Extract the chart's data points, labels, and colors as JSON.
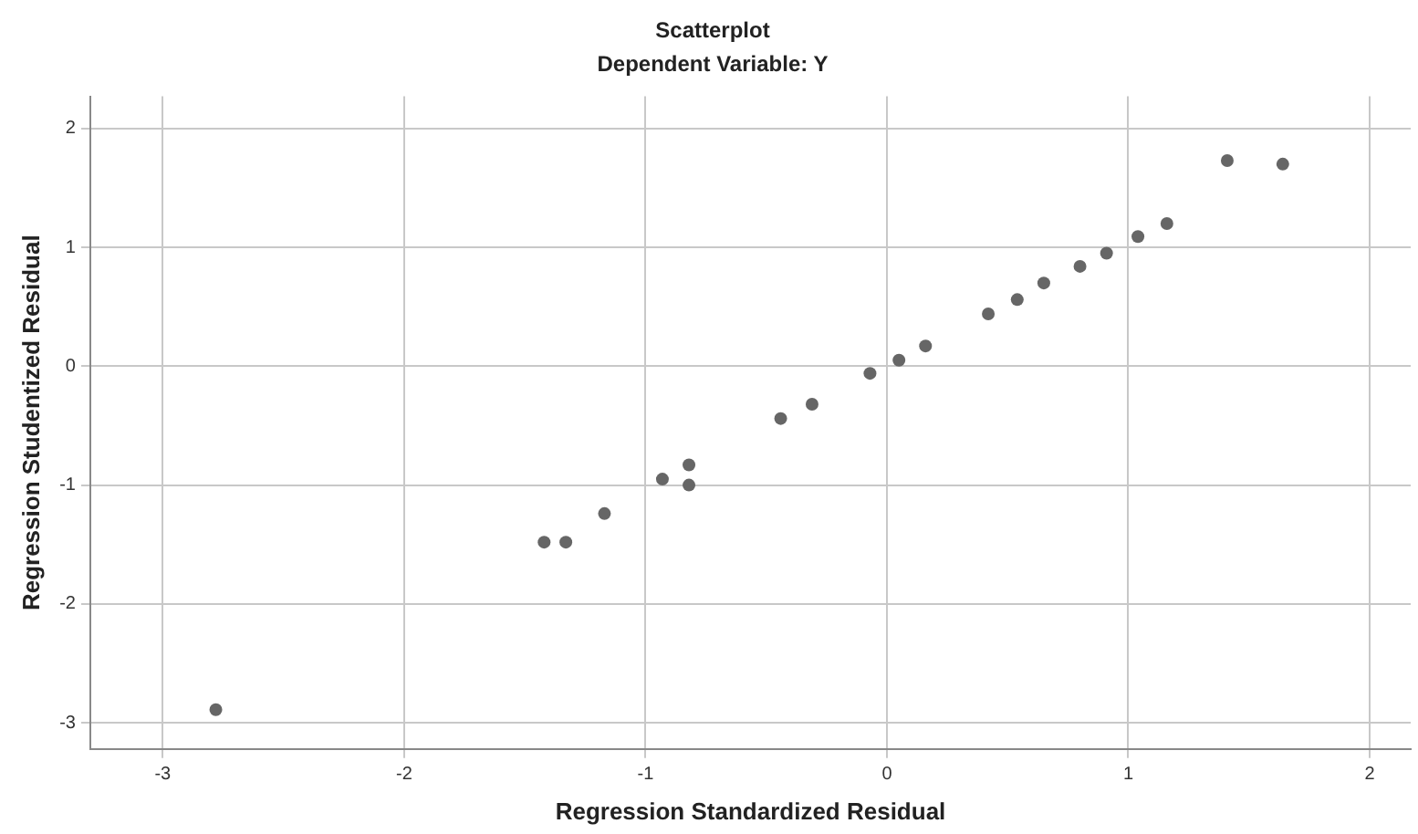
{
  "chart_data": {
    "type": "scatter",
    "title": "Scatterplot",
    "subtitle": "Dependent Variable: Y",
    "xlabel": "Regression Standardized Residual",
    "ylabel": "Regression Studentized Residual",
    "x": [
      -2.78,
      -1.42,
      -1.33,
      -1.17,
      -0.93,
      -0.82,
      -0.82,
      -0.44,
      -0.31,
      -0.07,
      0.05,
      0.16,
      0.42,
      0.54,
      0.65,
      0.8,
      0.91,
      1.04,
      1.16,
      1.41,
      1.64
    ],
    "series": [
      {
        "color": "#666666",
        "values": [
          -2.89,
          -1.48,
          -1.48,
          -1.24,
          -0.95,
          -0.83,
          -1.0,
          -0.44,
          -0.32,
          -0.06,
          0.05,
          0.17,
          0.44,
          0.56,
          0.7,
          0.84,
          0.95,
          1.09,
          1.2,
          1.73,
          1.7
        ]
      }
    ],
    "xlim": [
      -3.3,
      2.17
    ],
    "ylim": [
      -3.22,
      2.27
    ],
    "xticks": [
      -3,
      -2,
      -1,
      0,
      1,
      2
    ],
    "yticks": [
      -3,
      -2,
      -1,
      0,
      1,
      2
    ],
    "grid": true,
    "legend": false,
    "marker": "circle"
  }
}
